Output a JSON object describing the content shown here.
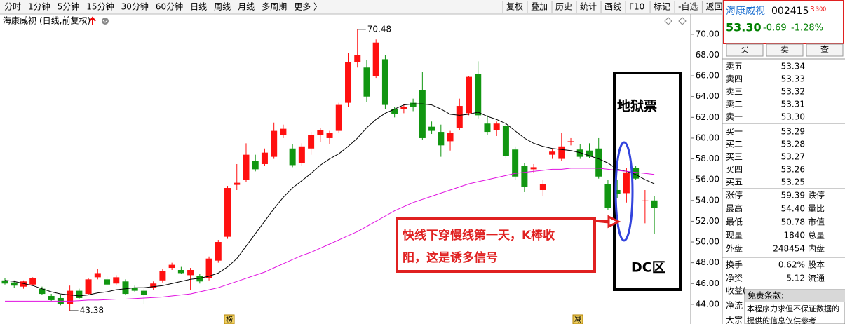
{
  "toolbar": {
    "left": [
      "分时",
      "1分钟",
      "5分钟",
      "15分钟",
      "30分钟",
      "60分钟",
      "日线",
      "周线",
      "月线",
      "多周期",
      "更多 〉"
    ],
    "active_index": 6,
    "right": [
      "复权",
      "叠加",
      "历史",
      "统计",
      "画线",
      "F10",
      "标记",
      "-自选",
      "返回"
    ]
  },
  "chart_data": {
    "type": "candlestick",
    "title": "海康威视",
    "subtitle": "(日线,前复权)",
    "up_color": "#ff1010",
    "down_color": "#119611",
    "open": [
      46.3,
      46.1,
      45.7,
      45.9,
      45.5,
      44.8,
      44.6,
      44.0,
      45.3,
      45.0,
      46.6,
      46.4,
      46.0,
      46.2,
      45.6,
      45.3,
      45.6,
      46.3,
      47.5,
      47.3,
      46.8,
      46.7,
      46.5,
      48.2,
      50.5,
      55.5,
      56.0,
      57.8,
      57.5,
      58.2,
      60.3,
      59.0,
      57.6,
      59.0,
      60.3,
      60.0,
      60.7,
      63.4,
      67.3,
      66.8,
      66.0,
      67.6,
      62.8,
      62.8,
      63.4,
      64.6,
      61.1,
      60.6,
      59.7,
      61.0,
      62.4,
      66.2,
      61.4,
      60.8,
      61.2,
      58.9,
      57.3,
      57.0,
      55.0,
      58.4,
      58.0,
      59.6,
      58.9,
      58.8,
      59.0,
      55.6,
      55.0,
      54.7,
      57.1,
      54.0,
      54.0
    ],
    "high": [
      46.5,
      46.3,
      46.3,
      46.6,
      45.7,
      45.0,
      44.9,
      45.8,
      45.5,
      46.5,
      47.4,
      46.7,
      46.8,
      46.4,
      45.8,
      45.5,
      46.2,
      47.4,
      48.0,
      47.6,
      47.5,
      46.9,
      48.6,
      50.2,
      55.4,
      57.5,
      59.5,
      58.4,
      59.0,
      61.5,
      61.3,
      59.4,
      59.5,
      60.6,
      61.0,
      60.7,
      63.4,
      68.2,
      70.48,
      67.5,
      69.5,
      68.0,
      63.0,
      63.3,
      63.8,
      66.4,
      61.6,
      61.3,
      60.7,
      63.8,
      66.0,
      67.4,
      62.2,
      61.6,
      61.5,
      59.2,
      57.6,
      57.5,
      56.0,
      59.0,
      60.5,
      60.0,
      59.4,
      59.5,
      60.0,
      56.0,
      56.0,
      57.1,
      57.3,
      55.0,
      54.4
    ],
    "low": [
      45.9,
      45.6,
      45.5,
      45.8,
      44.9,
      44.3,
      43.9,
      43.38,
      44.5,
      44.9,
      46.4,
      45.8,
      45.9,
      44.9,
      45.2,
      44.0,
      45.4,
      46.1,
      47.3,
      46.9,
      45.4,
      46.0,
      46.3,
      48.0,
      50.3,
      55.0,
      55.8,
      56.8,
      57.3,
      58.0,
      60.0,
      57.2,
      57.3,
      58.4,
      59.6,
      59.4,
      60.5,
      63.0,
      66.8,
      63.5,
      65.8,
      62.8,
      62.0,
      62.4,
      62.6,
      59.8,
      60.4,
      58.2,
      58.8,
      60.8,
      62.2,
      61.9,
      60.3,
      60.2,
      58.1,
      56.0,
      54.8,
      56.7,
      54.4,
      58.0,
      57.8,
      59.3,
      58.0,
      58.1,
      56.1,
      53.1,
      54.2,
      53.8,
      56.0,
      51.8,
      50.78
    ],
    "close": [
      46.0,
      45.8,
      46.2,
      46.5,
      45.0,
      44.4,
      44.0,
      45.3,
      44.6,
      46.4,
      47.0,
      45.9,
      46.6,
      45.0,
      45.3,
      44.9,
      46.0,
      47.2,
      47.8,
      47.0,
      47.3,
      46.2,
      48.4,
      50.0,
      55.2,
      55.7,
      58.4,
      57.0,
      58.6,
      60.7,
      60.9,
      57.4,
      59.2,
      60.3,
      60.8,
      60.5,
      63.2,
      67.3,
      68.0,
      64.0,
      69.2,
      63.2,
      62.3,
      63.0,
      63.0,
      60.0,
      60.7,
      59.3,
      60.5,
      63.1,
      65.9,
      62.2,
      60.6,
      61.4,
      58.3,
      56.3,
      55.3,
      57.2,
      55.6,
      58.7,
      59.2,
      59.7,
      58.2,
      58.2,
      56.3,
      53.3,
      54.6,
      56.7,
      56.1,
      54.0,
      53.3
    ],
    "lines": [
      {
        "color": "#000000",
        "values": [
          46.3,
          46.2,
          46.0,
          45.8,
          45.5,
          45.2,
          45.0,
          44.9,
          44.8,
          44.9,
          45.1,
          45.2,
          45.4,
          45.5,
          45.6,
          45.6,
          45.7,
          45.8,
          46.0,
          46.2,
          46.4,
          46.5,
          46.7,
          47.0,
          47.6,
          48.4,
          49.6,
          50.8,
          52.0,
          53.2,
          54.3,
          55.2,
          55.9,
          56.6,
          57.4,
          58.0,
          58.5,
          59.2,
          60.0,
          61.0,
          61.8,
          62.4,
          62.8,
          63.2,
          63.3,
          63.3,
          63.2,
          62.8,
          62.3,
          62.2,
          62.3,
          62.5,
          62.1,
          61.8,
          61.4,
          60.7,
          60.0,
          59.5,
          59.2,
          59.0,
          58.9,
          58.8,
          58.6,
          58.3,
          58.0,
          57.6,
          57.0,
          56.8,
          56.5,
          56.0,
          55.6
        ]
      },
      {
        "color": "#e010e0",
        "values": [
          44.3,
          44.3,
          44.3,
          44.3,
          44.3,
          44.3,
          44.3,
          44.3,
          44.35,
          44.4,
          44.4,
          44.45,
          44.5,
          44.5,
          44.55,
          44.6,
          44.65,
          44.7,
          44.8,
          44.9,
          45.0,
          45.2,
          45.4,
          45.6,
          45.9,
          46.2,
          46.5,
          46.8,
          47.1,
          47.5,
          47.9,
          48.3,
          48.7,
          49.0,
          49.4,
          49.8,
          50.2,
          50.6,
          51.0,
          51.5,
          52.0,
          52.5,
          53.0,
          53.4,
          53.8,
          54.1,
          54.4,
          54.7,
          55.0,
          55.3,
          55.6,
          55.8,
          56.0,
          56.2,
          56.4,
          56.6,
          56.7,
          56.8,
          56.9,
          57.0,
          57.0,
          57.1,
          57.1,
          57.1,
          57.1,
          57.0,
          56.9,
          56.8,
          56.7,
          56.6,
          56.5
        ]
      }
    ],
    "ylim": [
      42.1,
      70.6
    ],
    "yticks": [
      {
        "value": 44,
        "label": "44.00"
      },
      {
        "value": 46,
        "label": "46.00"
      },
      {
        "value": 48,
        "label": "48.00"
      },
      {
        "value": 50,
        "label": "50.00"
      },
      {
        "value": 52,
        "label": "52.00"
      },
      {
        "value": 54,
        "label": "54.00"
      },
      {
        "value": 56,
        "label": "56.00"
      },
      {
        "value": 58,
        "label": "58.00"
      },
      {
        "value": 60,
        "label": "60.00"
      },
      {
        "value": 62,
        "label": "62.00"
      },
      {
        "value": 64,
        "label": "64.00"
      },
      {
        "value": 66,
        "label": "66.00"
      },
      {
        "value": 68,
        "label": "68.00"
      },
      {
        "value": 70,
        "label": "70.00"
      }
    ],
    "markers": [
      "榜",
      "减"
    ],
    "annotations": {
      "callout": [
        "快线下穿慢线第一天，K棒收",
        "阳，这是诱多信号"
      ],
      "box_top": "地狱票",
      "box_bottom": "DC区"
    }
  },
  "quote": {
    "name": "海康威视",
    "code": "002415",
    "badge": "R",
    "badge_num": "300",
    "price": "53.30",
    "change": "-0.69",
    "pct": "-1.28%",
    "buttons": [
      "买",
      "卖",
      "查"
    ],
    "book": [
      {
        "label": "卖五",
        "price": "53.34"
      },
      {
        "label": "卖四",
        "price": "53.33"
      },
      {
        "label": "卖三",
        "price": "53.32"
      },
      {
        "label": "卖二",
        "price": "53.31"
      },
      {
        "label": "卖一",
        "price": "53.30"
      },
      {
        "label": "买一",
        "price": "53.29"
      },
      {
        "label": "买二",
        "price": "53.28"
      },
      {
        "label": "买三",
        "price": "53.27"
      },
      {
        "label": "买四",
        "price": "53.26"
      },
      {
        "label": "买五",
        "price": "53.25"
      }
    ],
    "stats": [
      {
        "label": "涨停",
        "value": "59.39",
        "label2": "跌停",
        "color": "#e00000"
      },
      {
        "label": "最高",
        "value": "54.40",
        "label2": "量比",
        "color": "#e00000"
      },
      {
        "label": "最低",
        "value": "50.78",
        "label2": "市值",
        "color": "#008000"
      },
      {
        "label": "现量",
        "value": "1840",
        "label2": "总量",
        "color": "#e00000"
      },
      {
        "label": "外盘",
        "value": "248454",
        "label2": "内盘",
        "color": "#e00000"
      },
      {
        "label": "换手",
        "value": "0.62%",
        "label2": "股本",
        "color": "#000000"
      },
      {
        "label": "净资",
        "value": "5.12",
        "label2": "流通",
        "color": "#000000"
      }
    ],
    "tail": [
      "收益(",
      "净流",
      "大宗"
    ],
    "notice": {
      "title": "免责条款:",
      "lines": [
        "本程序力求但不保证数据的",
        "提供的信息仅供参考"
      ]
    }
  }
}
